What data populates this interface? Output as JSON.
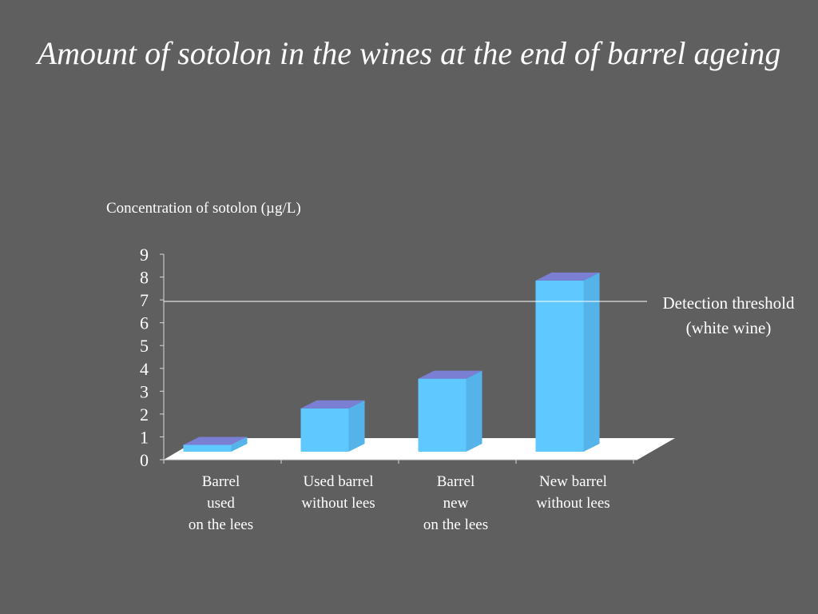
{
  "slide": {
    "title": "Amount of sotolon in the wines at the end of barrel ageing"
  },
  "chart_data": {
    "type": "bar",
    "title": "",
    "ylabel": "Concentration of sotolon (µg/L)",
    "xlabel": "",
    "ylim": [
      0,
      9
    ],
    "yticks": [
      0,
      1,
      2,
      3,
      4,
      5,
      6,
      7,
      8,
      9
    ],
    "categories": [
      [
        "Barrel",
        "used",
        "on the lees"
      ],
      [
        "Used barrel",
        "without lees"
      ],
      [
        "Barrel",
        "new",
        "on the lees"
      ],
      [
        "New barrel",
        "without lees"
      ]
    ],
    "values": [
      1.0,
      2.6,
      3.9,
      8.2
    ],
    "threshold": {
      "value": 6.9,
      "label": [
        "Detection threshold",
        "(white wine)"
      ]
    },
    "colors": {
      "bar_front": "#5fc8ff",
      "bar_side": "#54b4ea",
      "bar_top": "#7a7fd4",
      "floor": "#ffffff",
      "axis": "#d9d9d9"
    }
  }
}
